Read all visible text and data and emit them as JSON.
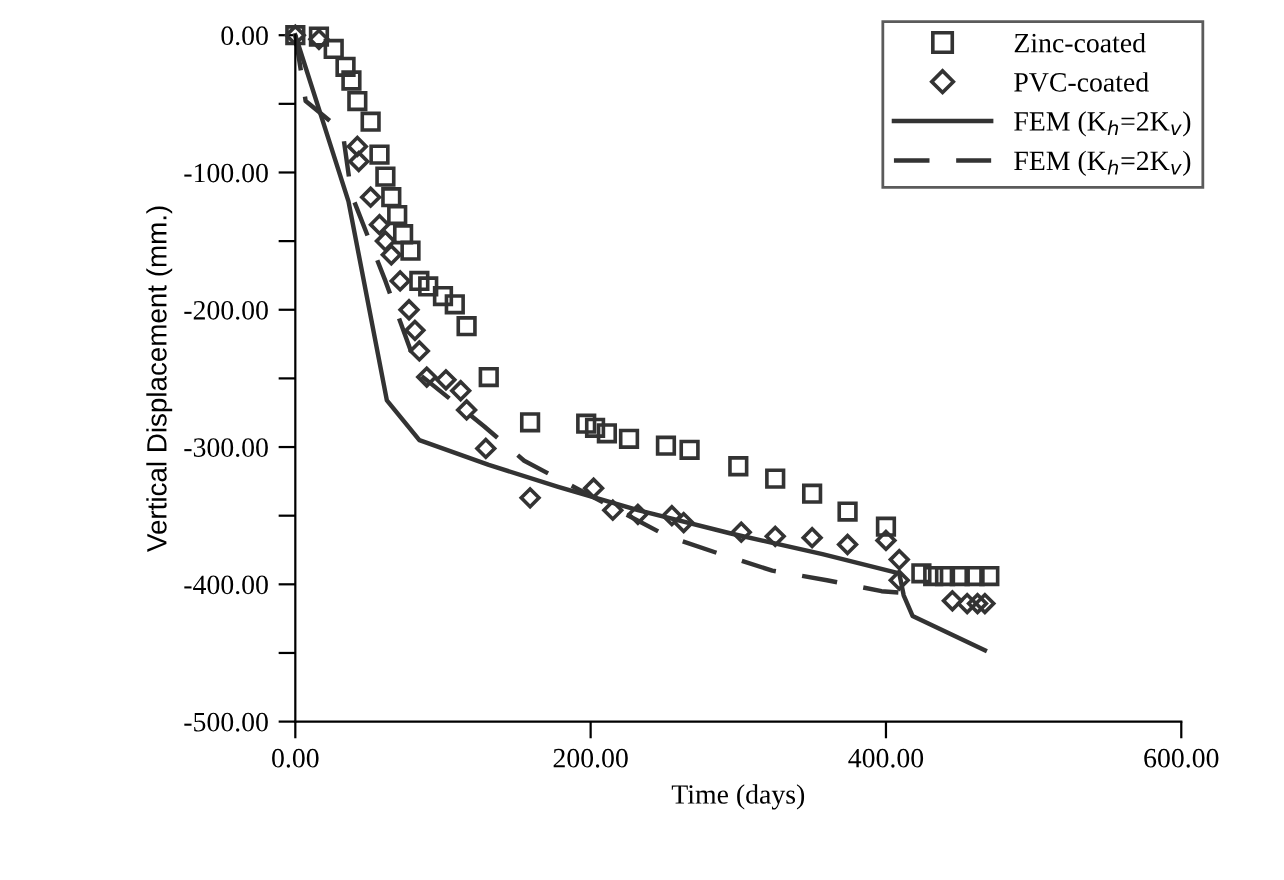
{
  "chart_data": {
    "type": "scatter",
    "xlabel": "Time (days)",
    "ylabel": "Vertical Displacement (mm.)",
    "xlim": [
      0,
      600
    ],
    "xticks": [
      {
        "value": 0,
        "label": "0.00"
      },
      {
        "value": 200,
        "label": "200.00"
      },
      {
        "value": 400,
        "label": "400.00"
      },
      {
        "value": 600,
        "label": "600.00"
      }
    ],
    "ylim": [
      -500,
      0
    ],
    "yticks": [
      {
        "value": 0,
        "label": "0.00"
      },
      {
        "value": -50,
        "label": null
      },
      {
        "value": -100,
        "label": "-100.00"
      },
      {
        "value": -150,
        "label": null
      },
      {
        "value": -200,
        "label": "-200.00"
      },
      {
        "value": -250,
        "label": null
      },
      {
        "value": -300,
        "label": "-300.00"
      },
      {
        "value": -350,
        "label": null
      },
      {
        "value": -400,
        "label": "-400.00"
      },
      {
        "value": -450,
        "label": null
      },
      {
        "value": -500,
        "label": "-500.00"
      }
    ],
    "grid": false,
    "legend": "top right",
    "series": [
      {
        "name": "Zinc-coated",
        "marker": "square",
        "color": "#333333",
        "x": [
          0,
          16,
          26,
          34,
          38,
          42,
          51,
          57,
          61,
          65,
          69,
          73,
          78,
          84,
          90,
          100,
          108,
          116,
          131,
          159,
          197,
          203,
          211,
          226,
          251,
          267,
          300,
          325,
          350,
          374,
          400,
          424,
          432,
          440,
          450,
          460,
          470
        ],
        "values": [
          0,
          -1,
          -10,
          -23,
          -33,
          -48,
          -63,
          -87,
          -103,
          -118,
          -131,
          -145,
          -157,
          -179,
          -183,
          -190,
          -196,
          -212,
          -249,
          -282,
          -283,
          -286,
          -290,
          -294,
          -299,
          -302,
          -314,
          -323,
          -334,
          -347,
          -358,
          -392,
          -394,
          -394,
          -394,
          -394,
          -394
        ]
      },
      {
        "name": "PVC-coated",
        "marker": "diamond",
        "color": "#333333",
        "x": [
          0,
          16,
          42,
          43,
          51,
          57,
          61,
          65,
          71,
          77,
          81,
          84,
          89,
          102,
          112,
          116,
          129,
          159,
          202,
          215,
          232,
          255,
          263,
          302,
          325,
          350,
          374,
          400,
          409,
          409,
          445,
          455,
          462,
          467
        ],
        "values": [
          0,
          -3,
          -81,
          -92,
          -118,
          -138,
          -150,
          -160,
          -179,
          -200,
          -215,
          -230,
          -249,
          -251,
          -259,
          -273,
          -301,
          -337,
          -330,
          -346,
          -349,
          -350,
          -355,
          -362,
          -365,
          -366,
          -371,
          -368,
          -382,
          -397,
          -412,
          -414,
          -414,
          -414
        ]
      },
      {
        "name": "FEM (K$_{h}$=2K$_{v}$)",
        "type": "line",
        "line_style": "solid",
        "color": "#333333",
        "x": [
          0,
          36,
          62,
          84,
          131,
          178,
          232,
          295,
          357,
          409,
          412,
          418,
          467
        ],
        "values": [
          0,
          -121,
          -266,
          -295,
          -313,
          -329,
          -346,
          -363,
          -378,
          -392,
          -408,
          -423,
          -448
        ]
      },
      {
        "name": "FEM (K$_{h}$=2K$_{v}$)",
        "type": "line",
        "line_style": "dashed",
        "color": "#333333",
        "x": [
          0,
          7,
          32,
          38,
          61,
          84,
          128,
          155,
          252,
          288,
          323,
          360,
          397,
          409
        ],
        "values": [
          0,
          -48,
          -70,
          -116,
          -179,
          -247,
          -285,
          -310,
          -365,
          -378,
          -390,
          -397,
          -405,
          -406
        ]
      }
    ]
  }
}
